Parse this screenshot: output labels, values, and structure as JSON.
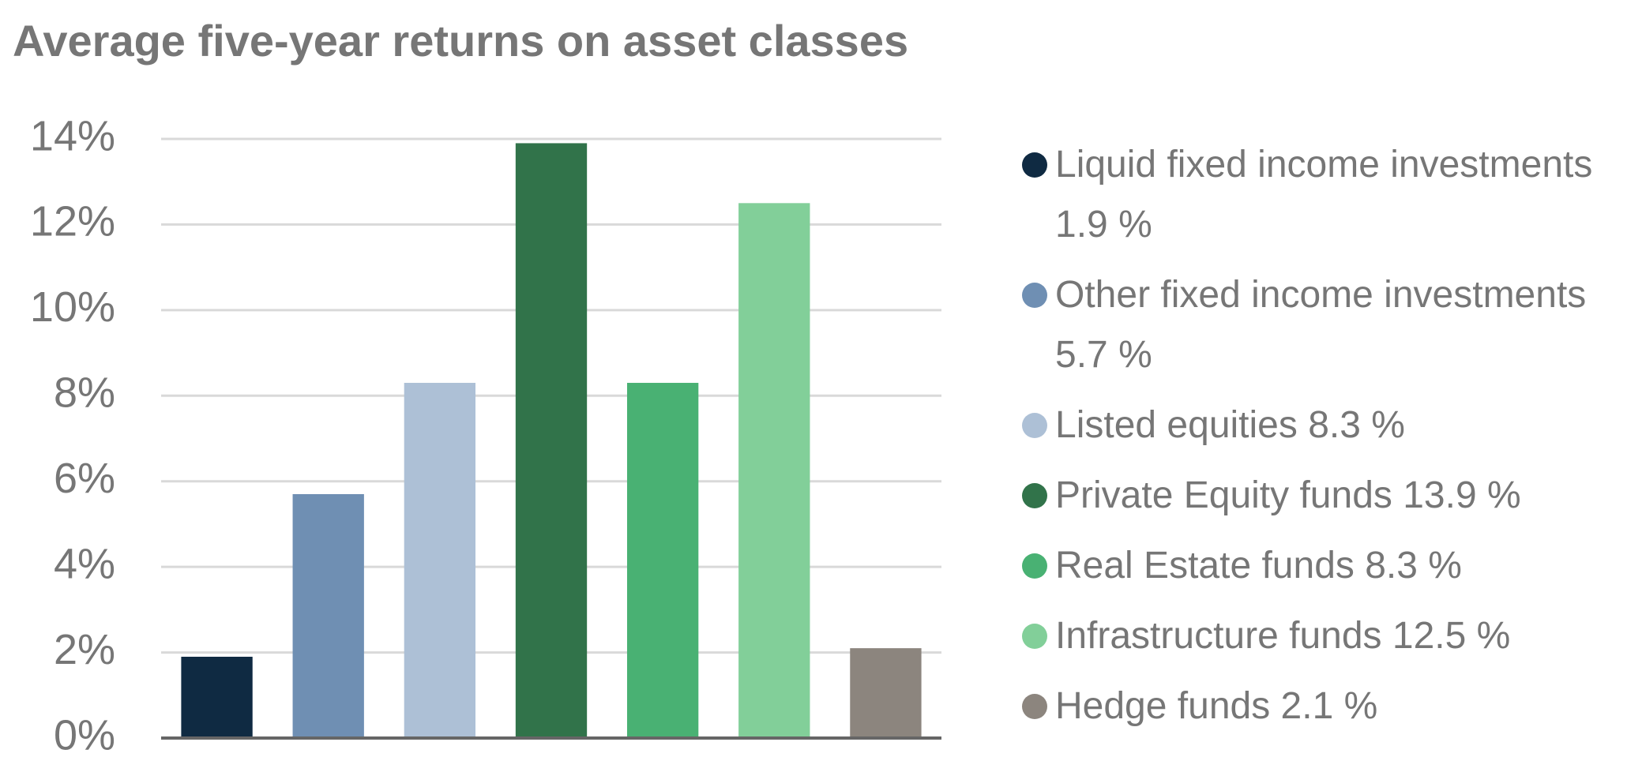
{
  "chart_data": {
    "type": "bar",
    "title": "Average five-year returns on asset classes",
    "categories": [
      "Liquid fixed income investments 1.9 %",
      "Other fixed income investments 5.7 %",
      "Listed equities 8.3 %",
      "Private Equity funds 13.9 %",
      "Real Estate funds 8.3 %",
      "Infrastructure funds 12.5 %",
      "Hedge funds 2.1 %"
    ],
    "values": [
      1.9,
      5.7,
      8.3,
      13.9,
      8.3,
      12.5,
      2.1
    ],
    "colors": [
      "#0f2a42",
      "#6f8fb3",
      "#adc0d6",
      "#31734a",
      "#49b173",
      "#82cf99",
      "#8c857e"
    ],
    "ylim": [
      0,
      14
    ],
    "yticks": [
      {
        "value": 0,
        "label": "0%"
      },
      {
        "value": 2,
        "label": "2%"
      },
      {
        "value": 4,
        "label": "4%"
      },
      {
        "value": 6,
        "label": "6%"
      },
      {
        "value": 8,
        "label": "8%"
      },
      {
        "value": 10,
        "label": "10%"
      },
      {
        "value": 12,
        "label": "12%"
      },
      {
        "value": 14,
        "label": "14%"
      }
    ],
    "grid": true,
    "legend": "right"
  }
}
